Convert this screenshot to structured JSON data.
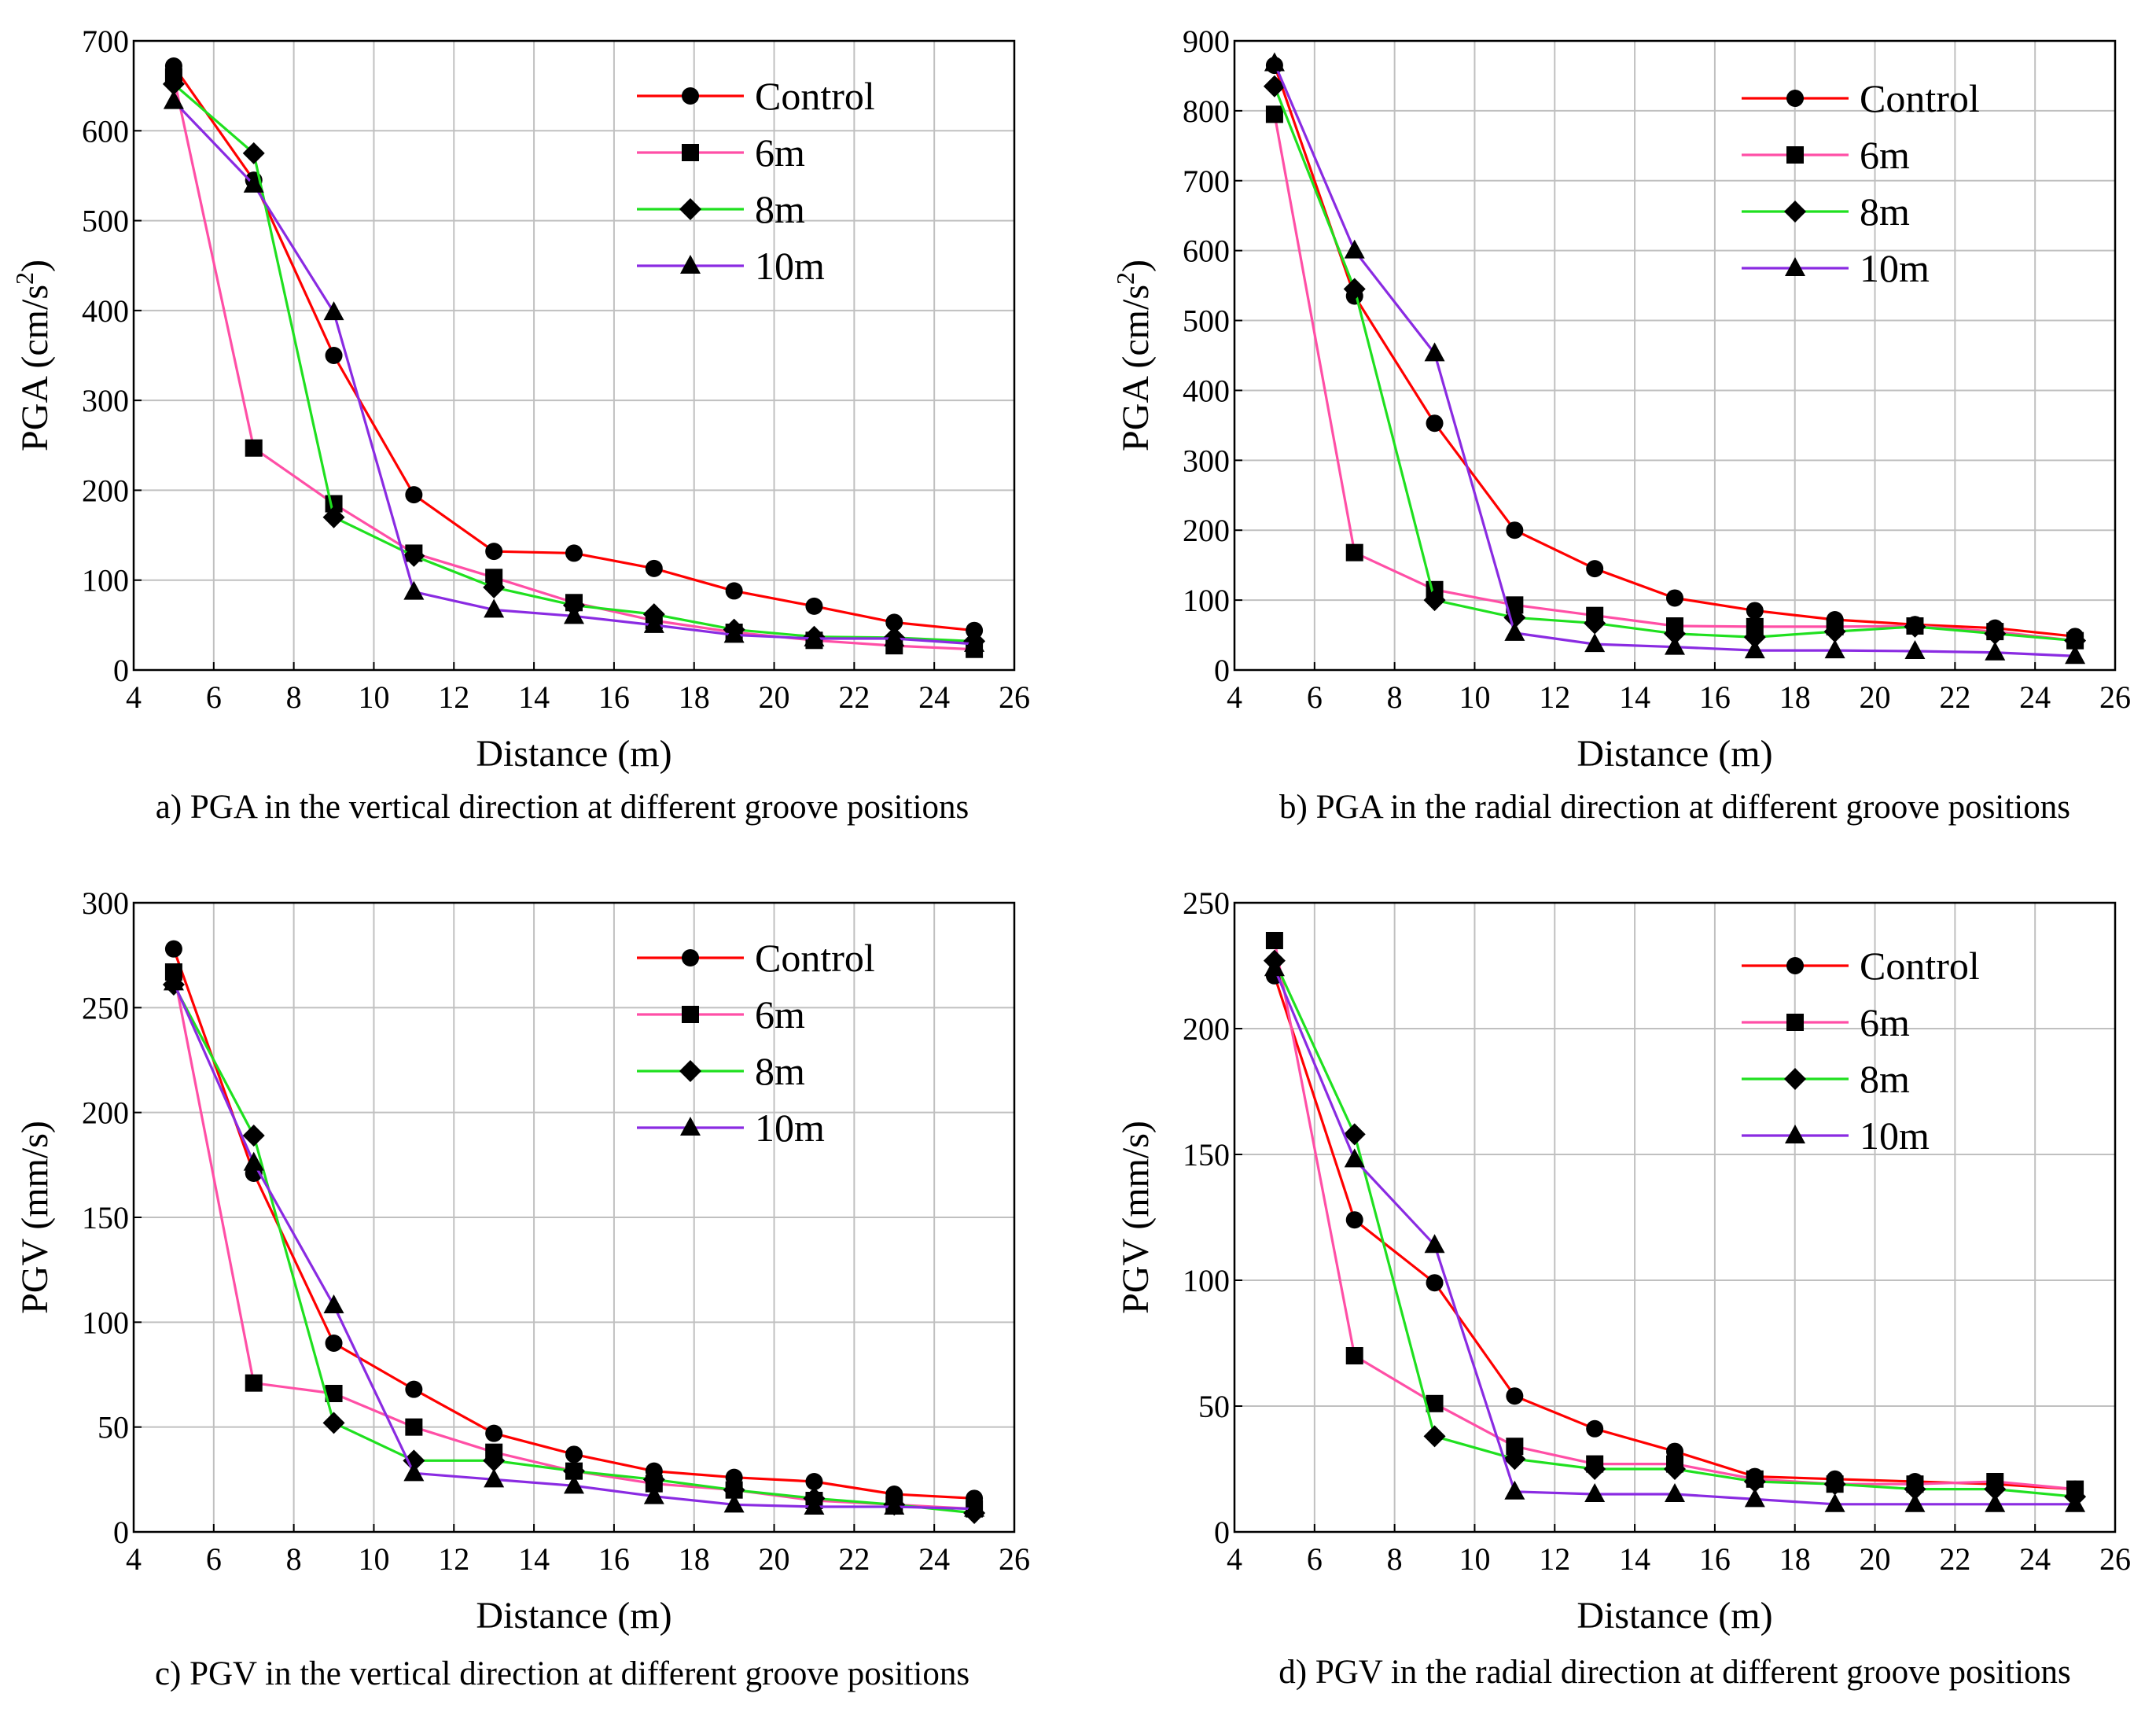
{
  "chart_data": [
    {
      "type": "line",
      "caption": "a) PGA in the vertical direction at different groove positions",
      "xlabel": "Distance (m)",
      "ylabel_main": "PGA (cm/s",
      "ylabel_sup": "2",
      "ylabel_end": ")",
      "xlim": [
        4,
        26
      ],
      "ylim": [
        0,
        700
      ],
      "xticks": [
        4,
        6,
        8,
        10,
        12,
        14,
        16,
        18,
        20,
        22,
        24,
        26
      ],
      "yticks": [
        0,
        100,
        200,
        300,
        400,
        500,
        600,
        700
      ],
      "grid": true,
      "legend_position": "top-right",
      "x": [
        5,
        7,
        9,
        11,
        13,
        15,
        17,
        19,
        21,
        23,
        25
      ],
      "series": [
        {
          "name": "Control",
          "color": "#ff0000",
          "marker": "circle",
          "values": [
            672,
            545,
            350,
            195,
            132,
            130,
            113,
            88,
            71,
            53,
            44
          ]
        },
        {
          "name": "6m",
          "color": "#ff4fa6",
          "marker": "square",
          "values": [
            660,
            247,
            185,
            130,
            103,
            75,
            55,
            42,
            33,
            27,
            23
          ]
        },
        {
          "name": "8m",
          "color": "#1fe01f",
          "marker": "diamond",
          "values": [
            652,
            575,
            170,
            127,
            92,
            72,
            62,
            45,
            37,
            36,
            32
          ]
        },
        {
          "name": "10m",
          "color": "#8a2be2",
          "marker": "triangle",
          "values": [
            633,
            540,
            398,
            87,
            67,
            60,
            50,
            39,
            35,
            35,
            29
          ]
        }
      ]
    },
    {
      "type": "line",
      "caption": "b) PGA in the radial direction at different groove positions",
      "xlabel": "Distance (m)",
      "ylabel_main": "PGA (cm/s",
      "ylabel_sup": "2",
      "ylabel_end": ")",
      "xlim": [
        4,
        26
      ],
      "ylim": [
        0,
        900
      ],
      "xticks": [
        4,
        6,
        8,
        10,
        12,
        14,
        16,
        18,
        20,
        22,
        24,
        26
      ],
      "yticks": [
        0,
        100,
        200,
        300,
        400,
        500,
        600,
        700,
        800,
        900
      ],
      "grid": true,
      "legend_position": "top-right",
      "x": [
        5,
        7,
        9,
        11,
        13,
        15,
        17,
        19,
        21,
        23,
        25
      ],
      "series": [
        {
          "name": "Control",
          "color": "#ff0000",
          "marker": "circle",
          "values": [
            865,
            535,
            353,
            200,
            145,
            103,
            85,
            72,
            65,
            60,
            48
          ]
        },
        {
          "name": "6m",
          "color": "#ff4fa6",
          "marker": "square",
          "values": [
            795,
            168,
            115,
            93,
            78,
            63,
            62,
            62,
            63,
            55,
            42
          ]
        },
        {
          "name": "8m",
          "color": "#1fe01f",
          "marker": "diamond",
          "values": [
            835,
            545,
            100,
            75,
            67,
            52,
            47,
            55,
            62,
            52,
            42
          ]
        },
        {
          "name": "10m",
          "color": "#8a2be2",
          "marker": "triangle",
          "values": [
            868,
            600,
            453,
            53,
            37,
            33,
            28,
            28,
            27,
            25,
            20
          ]
        }
      ]
    },
    {
      "type": "line",
      "caption": "c) PGV in the vertical direction at different groove positions",
      "xlabel": "Distance (m)",
      "ylabel_main": "PGV (mm/s)",
      "ylabel_sup": "",
      "ylabel_end": "",
      "xlim": [
        4,
        26
      ],
      "ylim": [
        0,
        300
      ],
      "xticks": [
        4,
        6,
        8,
        10,
        12,
        14,
        16,
        18,
        20,
        22,
        24,
        26
      ],
      "yticks": [
        0,
        50,
        100,
        150,
        200,
        250,
        300
      ],
      "grid": true,
      "legend_position": "top-right",
      "x": [
        5,
        7,
        9,
        11,
        13,
        15,
        17,
        19,
        21,
        23,
        25
      ],
      "series": [
        {
          "name": "Control",
          "color": "#ff0000",
          "marker": "circle",
          "values": [
            278,
            171,
            90,
            68,
            47,
            37,
            29,
            26,
            24,
            18,
            16
          ]
        },
        {
          "name": "6m",
          "color": "#ff4fa6",
          "marker": "square",
          "values": [
            267,
            71,
            66,
            50,
            38,
            29,
            23,
            20,
            15,
            13,
            11
          ]
        },
        {
          "name": "8m",
          "color": "#1fe01f",
          "marker": "diamond",
          "values": [
            261,
            189,
            52,
            34,
            34,
            29,
            25,
            20,
            16,
            13,
            9
          ]
        },
        {
          "name": "10m",
          "color": "#8a2be2",
          "marker": "triangle",
          "values": [
            262,
            176,
            108,
            28,
            25,
            22,
            17,
            13,
            12,
            12,
            11
          ]
        }
      ]
    },
    {
      "type": "line",
      "caption": "d) PGV in the radial direction at different groove positions",
      "xlabel": "Distance (m)",
      "ylabel_main": "PGV (mm/s)",
      "ylabel_sup": "",
      "ylabel_end": "",
      "xlim": [
        4,
        26
      ],
      "ylim": [
        0,
        250
      ],
      "xticks": [
        4,
        6,
        8,
        10,
        12,
        14,
        16,
        18,
        20,
        22,
        24,
        26
      ],
      "yticks": [
        0,
        50,
        100,
        150,
        200,
        250
      ],
      "grid": true,
      "legend_position": "top-right",
      "x": [
        5,
        7,
        9,
        11,
        13,
        15,
        17,
        19,
        21,
        23,
        25
      ],
      "series": [
        {
          "name": "Control",
          "color": "#ff0000",
          "marker": "circle",
          "values": [
            221,
            124,
            99,
            54,
            41,
            32,
            22,
            21,
            20,
            19,
            17
          ]
        },
        {
          "name": "6m",
          "color": "#ff4fa6",
          "marker": "square",
          "values": [
            235,
            70,
            51,
            34,
            27,
            27,
            21,
            19,
            19,
            20,
            17
          ]
        },
        {
          "name": "8m",
          "color": "#1fe01f",
          "marker": "diamond",
          "values": [
            227,
            158,
            38,
            29,
            25,
            25,
            20,
            19,
            17,
            17,
            14
          ]
        },
        {
          "name": "10m",
          "color": "#8a2be2",
          "marker": "triangle",
          "values": [
            224,
            148,
            114,
            16,
            15,
            15,
            13,
            11,
            11,
            11,
            11
          ]
        }
      ]
    }
  ]
}
